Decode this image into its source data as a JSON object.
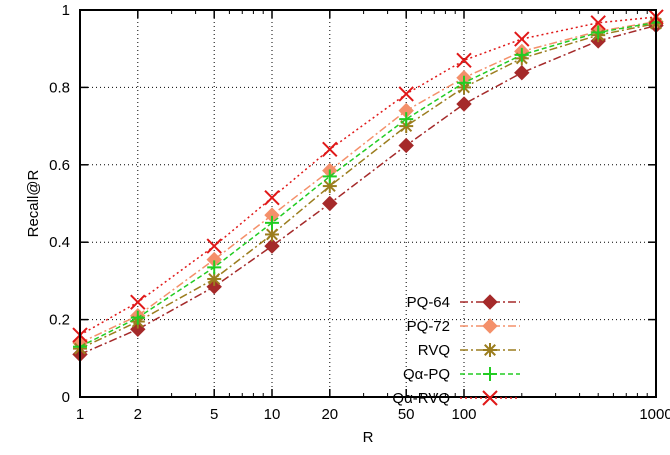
{
  "chart_data": {
    "type": "line",
    "title": "",
    "xlabel": "R",
    "ylabel": "Recall@R",
    "xscale": "log",
    "xlim": [
      1,
      1000
    ],
    "ylim": [
      0,
      1
    ],
    "grid": true,
    "legend_position": "bottom-right",
    "x_ticks": [
      1,
      2,
      5,
      10,
      20,
      50,
      100,
      1000
    ],
    "x_tick_labels": [
      "1",
      "2",
      "5",
      "10",
      "20",
      "50",
      "100",
      "1000"
    ],
    "y_ticks": [
      0,
      0.2,
      0.4,
      0.6,
      0.8,
      1
    ],
    "y_tick_labels": [
      "0",
      "0.2",
      "0.4",
      "0.6",
      "0.8",
      "1"
    ],
    "x": [
      1,
      2,
      5,
      10,
      20,
      50,
      100,
      200,
      500,
      1000
    ],
    "series": [
      {
        "name": "PQ-64",
        "color": "#a52a2a",
        "marker": "diamond",
        "dash": "dash-dot",
        "values": [
          0.11,
          0.175,
          0.285,
          0.39,
          0.5,
          0.65,
          0.757,
          0.838,
          0.92,
          0.96
        ]
      },
      {
        "name": "PQ-72",
        "color": "#f4906a",
        "marker": "diamond",
        "dash": "dash-dot",
        "values": [
          0.14,
          0.21,
          0.355,
          0.47,
          0.585,
          0.74,
          0.825,
          0.893,
          0.945,
          0.97
        ]
      },
      {
        "name": "RVQ",
        "color": "#9b7d1e",
        "marker": "star",
        "dash": "dash-dot",
        "values": [
          0.125,
          0.195,
          0.305,
          0.42,
          0.545,
          0.7,
          0.8,
          0.875,
          0.935,
          0.965
        ]
      },
      {
        "name": "Qα-PQ",
        "color": "#22cc22",
        "marker": "plus",
        "dash": "dashed",
        "values": [
          0.13,
          0.205,
          0.335,
          0.45,
          0.57,
          0.718,
          0.812,
          0.884,
          0.942,
          0.968
        ]
      },
      {
        "name": "Qα-RVQ",
        "color": "#e01818",
        "marker": "cross",
        "dash": "dotted",
        "values": [
          0.16,
          0.245,
          0.39,
          0.515,
          0.64,
          0.783,
          0.87,
          0.925,
          0.967,
          0.982
        ]
      }
    ]
  }
}
